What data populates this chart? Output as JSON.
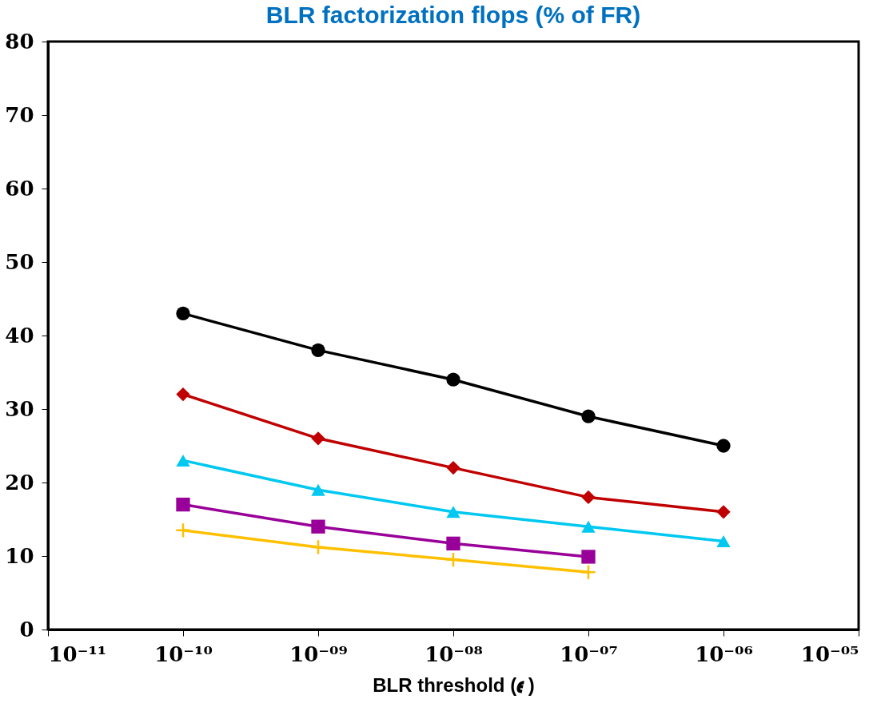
{
  "chart_data": {
    "type": "line",
    "title": "BLR factorization flops (% of FR)",
    "xlabel": "BLR threshold (𝝐 )",
    "x": [
      1e-10,
      1e-09,
      1e-08,
      1e-07,
      1e-06
    ],
    "log": "x",
    "xlim": [
      1e-11,
      1e-05
    ],
    "xticks": [
      {
        "value": 1e-11,
        "label": "10⁻¹¹"
      },
      {
        "value": 1e-10,
        "label": "10⁻¹⁰"
      },
      {
        "value": 1e-09,
        "label": "10⁻⁰⁹"
      },
      {
        "value": 1e-08,
        "label": "10⁻⁰⁸"
      },
      {
        "value": 1e-07,
        "label": "10⁻⁰⁷"
      },
      {
        "value": 1e-06,
        "label": "10⁻⁰⁶"
      },
      {
        "value": 1e-05,
        "label": "10⁻⁰⁵"
      }
    ],
    "ylim": [
      0,
      80
    ],
    "yticks": [
      0,
      10,
      20,
      30,
      40,
      50,
      60,
      70,
      80
    ],
    "grid": false,
    "line_style": "solid",
    "series": [
      {
        "color": "#000000",
        "marker": "circle",
        "values": [
          43,
          38,
          34,
          29,
          25
        ]
      },
      {
        "color": "#c00000",
        "marker": "diamond",
        "values": [
          32,
          26,
          22,
          18,
          16
        ]
      },
      {
        "color": "#00c8f0",
        "marker": "triangle",
        "values": [
          23,
          19,
          16,
          14,
          12
        ]
      },
      {
        "color": "#990099",
        "marker": "square",
        "values": [
          17,
          14,
          11.7,
          9.9,
          null
        ]
      },
      {
        "color": "#ffc000",
        "marker": "cross",
        "values": [
          13.5,
          11.2,
          9.5,
          7.8,
          null
        ]
      }
    ]
  }
}
